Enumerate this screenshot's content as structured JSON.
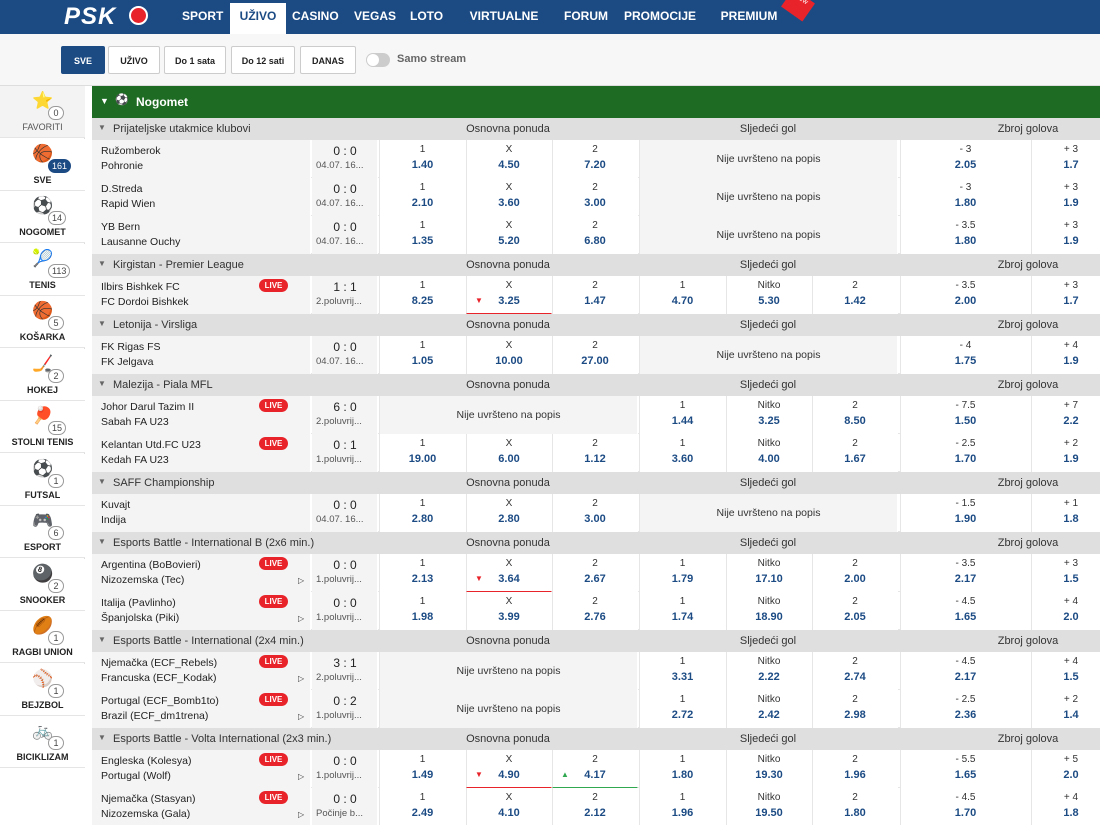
{
  "nav": {
    "logo": "PSK",
    "items": [
      "SPORT",
      "UŽIVO",
      "CASINO",
      "VEGAS",
      "LOTO",
      "VIRTUALNE IGRE",
      "FORUM",
      "PROMOCIJE",
      "PREMIUM KLUB"
    ],
    "new_badge": "new"
  },
  "filters": {
    "buttons": [
      "SVE",
      "UŽIVO",
      "Do 1 sata",
      "Do 12 sati",
      "DANAS"
    ],
    "stream_label": "Samo stream"
  },
  "sidebar": [
    {
      "label": "FAVORITI",
      "count": "0",
      "icon": "⭐"
    },
    {
      "label": "SVE",
      "count": "161",
      "icon": "🏀"
    },
    {
      "label": "NOGOMET",
      "count": "14",
      "icon": "⚽"
    },
    {
      "label": "TENIS",
      "count": "113",
      "icon": "🎾"
    },
    {
      "label": "KOŠARKA",
      "count": "5",
      "icon": "🏀"
    },
    {
      "label": "HOKEJ",
      "count": "2",
      "icon": "🏒"
    },
    {
      "label": "STOLNI TENIS",
      "count": "15",
      "icon": "🏓"
    },
    {
      "label": "FUTSAL",
      "count": "1",
      "icon": "⚽"
    },
    {
      "label": "ESPORT",
      "count": "6",
      "icon": "🎮"
    },
    {
      "label": "SNOOKER",
      "count": "2",
      "icon": "🎱"
    },
    {
      "label": "RAGBI UNION",
      "count": "1",
      "icon": "🏉"
    },
    {
      "label": "BEJZBOL",
      "count": "1",
      "icon": "⚾"
    },
    {
      "label": "BICIKLIZAM",
      "count": "1",
      "icon": "🚲"
    }
  ],
  "sport": {
    "name": "Nogomet"
  },
  "market_headers": {
    "main": "Osnovna ponuda",
    "next": "Sljedeći gol",
    "total": "Zbroj golova"
  },
  "not_listed": "Nije uvršteno na popis",
  "live_label": "LIVE",
  "leagues": [
    {
      "name": "Prijateljske utakmice klubovi",
      "matches": [
        {
          "home": "Ružomberok",
          "away": "Pohronie",
          "score": "0 : 0",
          "time": "04.07. 16...",
          "main": [
            [
              "1",
              "1.40"
            ],
            [
              "X",
              "4.50"
            ],
            [
              "2",
              "7.20"
            ]
          ],
          "next": null,
          "total": [
            [
              "- 3",
              "2.05"
            ],
            [
              "+ 3",
              "1.7"
            ]
          ]
        },
        {
          "home": "D.Streda",
          "away": "Rapid Wien",
          "score": "0 : 0",
          "time": "04.07. 16...",
          "main": [
            [
              "1",
              "2.10"
            ],
            [
              "X",
              "3.60"
            ],
            [
              "2",
              "3.00"
            ]
          ],
          "next": null,
          "total": [
            [
              "- 3",
              "1.80"
            ],
            [
              "+ 3",
              "1.9"
            ]
          ]
        },
        {
          "home": "YB Bern",
          "away": "Lausanne Ouchy",
          "score": "0 : 0",
          "time": "04.07. 16...",
          "main": [
            [
              "1",
              "1.35"
            ],
            [
              "X",
              "5.20"
            ],
            [
              "2",
              "6.80"
            ]
          ],
          "next": null,
          "total": [
            [
              "- 3.5",
              "1.80"
            ],
            [
              "+ 3",
              "1.9"
            ]
          ]
        }
      ]
    },
    {
      "name": "Kirgistan - Premier League",
      "matches": [
        {
          "home": "Ilbirs Bishkek FC",
          "away": "FC Dordoi Bishkek",
          "score": "1 : 1",
          "time": "2.poluvrij...",
          "live": true,
          "main": [
            [
              "1",
              "8.25"
            ],
            [
              "X",
              "3.25"
            ],
            [
              "2",
              "1.47"
            ]
          ],
          "next": [
            [
              "1",
              "4.70"
            ],
            [
              "Nitko",
              "5.30"
            ],
            [
              "2",
              "1.42"
            ]
          ],
          "total": [
            [
              "- 3.5",
              "2.00"
            ],
            [
              "+ 3",
              "1.7"
            ]
          ]
        }
      ]
    },
    {
      "name": "Letonija - Virsliga",
      "matches": [
        {
          "home": "FK Rigas FS",
          "away": "FK Jelgava",
          "score": "0 : 0",
          "time": "04.07. 16...",
          "main": [
            [
              "1",
              "1.05"
            ],
            [
              "X",
              "10.00"
            ],
            [
              "2",
              "27.00"
            ]
          ],
          "next": null,
          "total": [
            [
              "- 4",
              "1.75"
            ],
            [
              "+ 4",
              "1.9"
            ]
          ]
        }
      ]
    },
    {
      "name": "Malezija - Piala MFL",
      "matches": [
        {
          "home": "Johor Darul Tazim II",
          "away": "Sabah FA U23",
          "score": "6 : 0",
          "time": "2.poluvrij...",
          "live": true,
          "main": null,
          "next": [
            [
              "1",
              "1.44"
            ],
            [
              "Nitko",
              "3.25"
            ],
            [
              "2",
              "8.50"
            ]
          ],
          "total": [
            [
              "- 7.5",
              "1.50"
            ],
            [
              "+ 7",
              "2.2"
            ]
          ]
        },
        {
          "home": "Kelantan Utd.FC U23",
          "away": "Kedah FA U23",
          "score": "0 : 1",
          "time": "1.poluvrij...",
          "live": true,
          "main": [
            [
              "1",
              "19.00"
            ],
            [
              "X",
              "6.00"
            ],
            [
              "2",
              "1.12"
            ]
          ],
          "next": [
            [
              "1",
              "3.60"
            ],
            [
              "Nitko",
              "4.00"
            ],
            [
              "2",
              "1.67"
            ]
          ],
          "total": [
            [
              "- 2.5",
              "1.70"
            ],
            [
              "+ 2",
              "1.9"
            ]
          ]
        }
      ]
    },
    {
      "name": "SAFF Championship",
      "matches": [
        {
          "home": "Kuvajt",
          "away": "Indija",
          "score": "0 : 0",
          "time": "04.07. 16...",
          "main": [
            [
              "1",
              "2.80"
            ],
            [
              "X",
              "2.80"
            ],
            [
              "2",
              "3.00"
            ]
          ],
          "next": null,
          "total": [
            [
              "- 1.5",
              "1.90"
            ],
            [
              "+ 1",
              "1.8"
            ]
          ]
        }
      ]
    },
    {
      "name": "Esports Battle - International B (2x6 min.)",
      "matches": [
        {
          "home": "Argentina (BoBovieri)",
          "away": "Nizozemska (Tec)",
          "score": "0 : 0",
          "time": "1.poluvrij...",
          "live": true,
          "play": true,
          "main": [
            [
              "1",
              "2.13"
            ],
            [
              "X",
              "3.64"
            ],
            [
              "2",
              "2.67"
            ]
          ],
          "next": [
            [
              "1",
              "1.79"
            ],
            [
              "Nitko",
              "17.10"
            ],
            [
              "2",
              "2.00"
            ]
          ],
          "total": [
            [
              "- 3.5",
              "2.17"
            ],
            [
              "+ 3",
              "1.5"
            ]
          ]
        },
        {
          "home": "Italija (Pavlinho)",
          "away": "Španjolska (Piki)",
          "score": "0 : 0",
          "time": "1.poluvrij...",
          "live": true,
          "play": true,
          "main": [
            [
              "1",
              "1.98"
            ],
            [
              "X",
              "3.99"
            ],
            [
              "2",
              "2.76"
            ]
          ],
          "next": [
            [
              "1",
              "1.74"
            ],
            [
              "Nitko",
              "18.90"
            ],
            [
              "2",
              "2.05"
            ]
          ],
          "total": [
            [
              "- 4.5",
              "1.65"
            ],
            [
              "+ 4",
              "2.0"
            ]
          ]
        }
      ]
    },
    {
      "name": "Esports Battle - International (2x4 min.)",
      "matches": [
        {
          "home": "Njemačka (ECF_Rebels)",
          "away": "Francuska (ECF_Kodak)",
          "score": "3 : 1",
          "time": "2.poluvrij...",
          "live": true,
          "play": true,
          "main": null,
          "next": [
            [
              "1",
              "3.31"
            ],
            [
              "Nitko",
              "2.22"
            ],
            [
              "2",
              "2.74"
            ]
          ],
          "total": [
            [
              "- 4.5",
              "2.17"
            ],
            [
              "+ 4",
              "1.5"
            ]
          ]
        },
        {
          "home": "Portugal (ECF_Bomb1to)",
          "away": "Brazil (ECF_dm1trena)",
          "score": "0 : 2",
          "time": "1.poluvrij...",
          "live": true,
          "play": true,
          "main": null,
          "next": [
            [
              "1",
              "2.72"
            ],
            [
              "Nitko",
              "2.42"
            ],
            [
              "2",
              "2.98"
            ]
          ],
          "total": [
            [
              "- 2.5",
              "2.36"
            ],
            [
              "+ 2",
              "1.4"
            ]
          ]
        }
      ]
    },
    {
      "name": "Esports Battle - Volta International (2x3 min.)",
      "matches": [
        {
          "home": "Engleska (Kolesya)",
          "away": "Portugal (Wolf)",
          "score": "0 : 0",
          "time": "1.poluvrij...",
          "live": true,
          "play": true,
          "main": [
            [
              "1",
              "1.49"
            ],
            [
              "X",
              "4.90"
            ],
            [
              "2",
              "4.17"
            ]
          ],
          "next": [
            [
              "1",
              "1.80"
            ],
            [
              "Nitko",
              "19.30"
            ],
            [
              "2",
              "1.96"
            ]
          ],
          "total": [
            [
              "- 5.5",
              "1.65"
            ],
            [
              "+ 5",
              "2.0"
            ]
          ]
        },
        {
          "home": "Njemačka (Stasyan)",
          "away": "Nizozemska (Gala)",
          "score": "0 : 0",
          "time": "Počinje b...",
          "live": true,
          "play": true,
          "main": [
            [
              "1",
              "2.49"
            ],
            [
              "X",
              "4.10"
            ],
            [
              "2",
              "2.12"
            ]
          ],
          "next": [
            [
              "1",
              "1.96"
            ],
            [
              "Nitko",
              "19.50"
            ],
            [
              "2",
              "1.80"
            ]
          ],
          "total": [
            [
              "- 4.5",
              "1.70"
            ],
            [
              "+ 4",
              "1.8"
            ]
          ]
        }
      ]
    }
  ],
  "colors": {
    "brand": "#1c4b84",
    "live": "#e8232a",
    "sport_header": "#1e6b23",
    "up": "#2fa84f",
    "down": "#e8232a"
  }
}
